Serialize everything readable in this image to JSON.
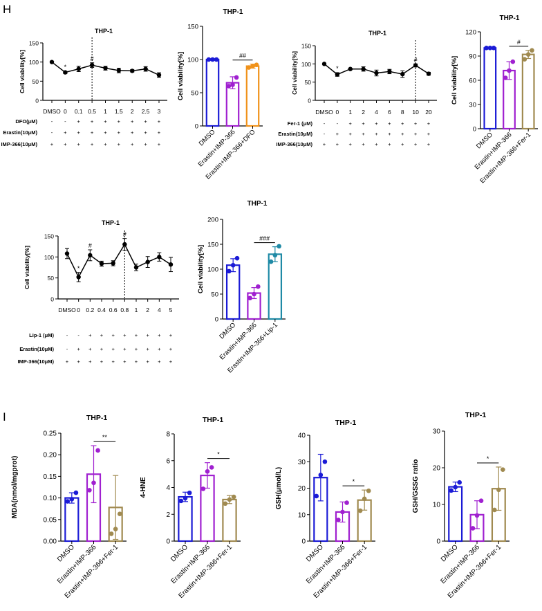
{
  "panel_labels": {
    "h": "H",
    "i": "I"
  },
  "colors": {
    "blue": "#1b1bd6",
    "purple": "#a020d0",
    "orange": "#f0921a",
    "olive": "#a08a50",
    "teal": "#1f8aa6",
    "black": "#000000"
  },
  "chart_data": [
    {
      "id": "dfo_line",
      "type": "line",
      "title": "THP-1",
      "ylabel": "Cell viability[%]",
      "ylim": [
        0,
        150
      ],
      "yticks": [
        0,
        50,
        100,
        150
      ],
      "x": [
        "DMSO",
        "0",
        "0.1",
        "0.5",
        "1",
        "1.5",
        "2",
        "2.5",
        "3"
      ],
      "values": [
        100,
        73,
        82,
        92,
        84,
        78,
        77,
        82,
        66
      ],
      "errors": [
        0,
        3,
        7,
        6,
        5,
        6,
        3,
        6,
        6
      ],
      "annotations": [
        {
          "index": 1,
          "text": "*"
        },
        {
          "index": 3,
          "text": "#"
        }
      ],
      "divider_index": 3,
      "conditions": [
        {
          "label": "DFO(μM)",
          "signs": [
            "-",
            "-",
            "+",
            "+",
            "+",
            "+",
            "+",
            "+",
            "+"
          ]
        },
        {
          "label": "Erastin(10μM)",
          "signs": [
            "-",
            "+",
            "+",
            "+",
            "+",
            "+",
            "+",
            "+",
            "+"
          ]
        },
        {
          "label": "IMP-366(10μM)",
          "signs": [
            "+",
            "+",
            "+",
            "+",
            "+",
            "+",
            "+",
            "+",
            "+"
          ]
        }
      ]
    },
    {
      "id": "dfo_bar",
      "type": "bar",
      "title": "THP-1",
      "ylabel": "Cell viability[%]",
      "ylim": [
        0,
        150
      ],
      "yticks": [
        0,
        50,
        100,
        150
      ],
      "categories": [
        "DMSO",
        "Erastin+IMP-366",
        "Erastin+IMP-366+DFO"
      ],
      "values": [
        100,
        65,
        90
      ],
      "errors": [
        1,
        9,
        3
      ],
      "points": [
        [
          100,
          100,
          100
        ],
        [
          60,
          62,
          73
        ],
        [
          88,
          90,
          92
        ]
      ],
      "colors": [
        "blue",
        "purple",
        "orange"
      ],
      "significance": [
        {
          "from": 1,
          "to": 2,
          "text": "##"
        }
      ]
    },
    {
      "id": "fer_line",
      "type": "line",
      "title": "THP-1",
      "ylabel": "Cell viability[%]",
      "ylim": [
        0,
        150
      ],
      "yticks": [
        0,
        50,
        100,
        150
      ],
      "x": [
        "DMSO",
        "0",
        "1",
        "2",
        "4",
        "6",
        "8",
        "10",
        "20"
      ],
      "values": [
        100,
        71,
        86,
        86,
        75,
        79,
        72,
        96,
        73
      ],
      "errors": [
        0,
        5,
        2,
        6,
        8,
        6,
        9,
        4,
        4
      ],
      "annotations": [
        {
          "index": 1,
          "text": "*"
        },
        {
          "index": 7,
          "text": "#"
        }
      ],
      "divider_index": 7,
      "conditions": [
        {
          "label": "Fer-1 (μM)",
          "signs": [
            "-",
            "-",
            "+",
            "+",
            "+",
            "+",
            "+",
            "+",
            "+"
          ]
        },
        {
          "label": "Erastin(10μM)",
          "signs": [
            "-",
            "+",
            "+",
            "+",
            "+",
            "+",
            "+",
            "+",
            "+"
          ]
        },
        {
          "label": "IMP-366(10μM)",
          "signs": [
            "+",
            "+",
            "+",
            "+",
            "+",
            "+",
            "+",
            "+",
            "+"
          ]
        }
      ]
    },
    {
      "id": "fer_bar",
      "type": "bar",
      "title": "THP-1",
      "ylabel": "Cell viability[%]",
      "ylim": [
        0,
        120
      ],
      "yticks": [
        0,
        30,
        60,
        90,
        120
      ],
      "categories": [
        "DMSO",
        "Erastin+IMP-366",
        "Erastin+IMP-366+Fer-1"
      ],
      "values": [
        100,
        72,
        92
      ],
      "errors": [
        0.5,
        11,
        5
      ],
      "points": [
        [
          100,
          100,
          100
        ],
        [
          63,
          72,
          83
        ],
        [
          86,
          92,
          97
        ]
      ],
      "colors": [
        "blue",
        "purple",
        "olive"
      ],
      "significance": [
        {
          "from": 1,
          "to": 2,
          "text": "#"
        }
      ]
    },
    {
      "id": "lip_line",
      "type": "line",
      "title": "THP-1",
      "ylabel": "Cell viability[%]",
      "ylim": [
        0,
        150
      ],
      "yticks": [
        0,
        50,
        100,
        150
      ],
      "x": [
        "DMSO",
        "0",
        "0.2",
        "0.4",
        "0.6",
        "0.8",
        "1",
        "2",
        "4",
        "5"
      ],
      "values": [
        108,
        52,
        104,
        84,
        85,
        130,
        75,
        88,
        100,
        82
      ],
      "errors": [
        12,
        11,
        13,
        6,
        6,
        14,
        8,
        13,
        10,
        17
      ],
      "annotations": [
        {
          "index": 1,
          "text": "*"
        },
        {
          "index": 2,
          "text": "#"
        },
        {
          "index": 5,
          "text": "#"
        }
      ],
      "divider_index": 5,
      "conditions": [
        {
          "label": "Lip-1 (μM)",
          "signs": [
            "-",
            "-",
            "+",
            "+",
            "+",
            "+",
            "+",
            "+",
            "+",
            "+"
          ]
        },
        {
          "label": "Erastin(10μM)",
          "signs": [
            "-",
            "+",
            "+",
            "+",
            "+",
            "+",
            "+",
            "+",
            "+",
            "+"
          ]
        },
        {
          "label": "IMP-366(10μM)",
          "signs": [
            "+",
            "+",
            "+",
            "+",
            "+",
            "+",
            "+",
            "+",
            "+",
            "+"
          ]
        }
      ]
    },
    {
      "id": "lip_bar",
      "type": "bar",
      "title": "THP-1",
      "ylabel": "Cell viability[%]",
      "ylim": [
        0,
        200
      ],
      "yticks": [
        0,
        50,
        100,
        150,
        200
      ],
      "categories": [
        "DMSO",
        "Erastin+IMP-366",
        "Erastin+IMP-366+Lip-1"
      ],
      "values": [
        108,
        52,
        130
      ],
      "errors": [
        13,
        11,
        15
      ],
      "points": [
        [
          96,
          108,
          122
        ],
        [
          42,
          50,
          65
        ],
        [
          115,
          128,
          146
        ]
      ],
      "colors": [
        "blue",
        "purple",
        "teal"
      ],
      "significance": [
        {
          "from": 1,
          "to": 2,
          "text": "###"
        }
      ]
    },
    {
      "id": "mda_bar",
      "type": "bar",
      "title": "THP-1",
      "ylabel": "MDA(nmol/mgprot)",
      "ylim": [
        0,
        0.25
      ],
      "yticks": [
        0.0,
        0.05,
        0.1,
        0.15,
        0.2,
        0.25
      ],
      "tick_decimals": 2,
      "categories": [
        "DMSO",
        "Erastin+IMP-366",
        "Erastin+IMP-366+Fer-1"
      ],
      "values": [
        0.1,
        0.155,
        0.078
      ],
      "errors": [
        0.012,
        0.066,
        0.074
      ],
      "points": [
        [
          0.092,
          0.097,
          0.112
        ],
        [
          0.118,
          0.135,
          0.21
        ],
        [
          0.017,
          0.028,
          0.063
        ]
      ],
      "colors": [
        "blue",
        "purple",
        "olive"
      ],
      "significance": [
        {
          "from": 1,
          "to": 2,
          "text": "**"
        }
      ]
    },
    {
      "id": "hne_bar",
      "type": "bar",
      "title": "THP-1",
      "ylabel": "4-HNE",
      "ylim": [
        0,
        8
      ],
      "yticks": [
        0,
        2,
        4,
        6,
        8
      ],
      "categories": [
        "DMSO",
        "Erastin+IMP-366",
        "Erastin+IMP-366+Fer-1"
      ],
      "values": [
        3.3,
        4.9,
        3.1
      ],
      "errors": [
        0.35,
        0.95,
        0.3
      ],
      "points": [
        [
          3.0,
          3.2,
          3.6
        ],
        [
          3.9,
          5.2,
          5.5
        ],
        [
          2.8,
          3.1,
          3.3
        ]
      ],
      "colors": [
        "blue",
        "purple",
        "olive"
      ],
      "significance": [
        {
          "from": 1,
          "to": 2,
          "text": "*"
        }
      ]
    },
    {
      "id": "gsh_bar",
      "type": "bar",
      "title": "THP-1",
      "ylabel": "GSH(μmol/L)",
      "ylim": [
        0,
        40
      ],
      "yticks": [
        0,
        10,
        20,
        30,
        40
      ],
      "categories": [
        "DMSO",
        "Erastin+IMP-366",
        "Erastin+IMP-366+Fer-1"
      ],
      "values": [
        24,
        11,
        15.5
      ],
      "errors": [
        8.8,
        3.8,
        3.8
      ],
      "points": [
        [
          17,
          25,
          30
        ],
        [
          8,
          11,
          14.5
        ],
        [
          11.5,
          16,
          19
        ]
      ],
      "colors": [
        "blue",
        "purple",
        "olive"
      ],
      "significance": [
        {
          "from": 1,
          "to": 2,
          "text": "*"
        }
      ]
    },
    {
      "id": "ratio_bar",
      "type": "bar",
      "title": "THP-1",
      "ylabel": "GSH/GSSG ratio",
      "ylim": [
        0,
        30
      ],
      "yticks": [
        0,
        10,
        20,
        30
      ],
      "categories": [
        "DMSO",
        "Erastin+IMP-366",
        "Erastin+IMP-366+Fer-1"
      ],
      "values": [
        14.8,
        7.2,
        14.3
      ],
      "errors": [
        1.3,
        3.8,
        5.9
      ],
      "points": [
        [
          13.8,
          14.7,
          16
        ],
        [
          3.5,
          7,
          11
        ],
        [
          8.5,
          14,
          19.5
        ]
      ],
      "colors": [
        "blue",
        "purple",
        "olive"
      ],
      "significance": [
        {
          "from": 1,
          "to": 2,
          "text": "*"
        }
      ]
    }
  ]
}
